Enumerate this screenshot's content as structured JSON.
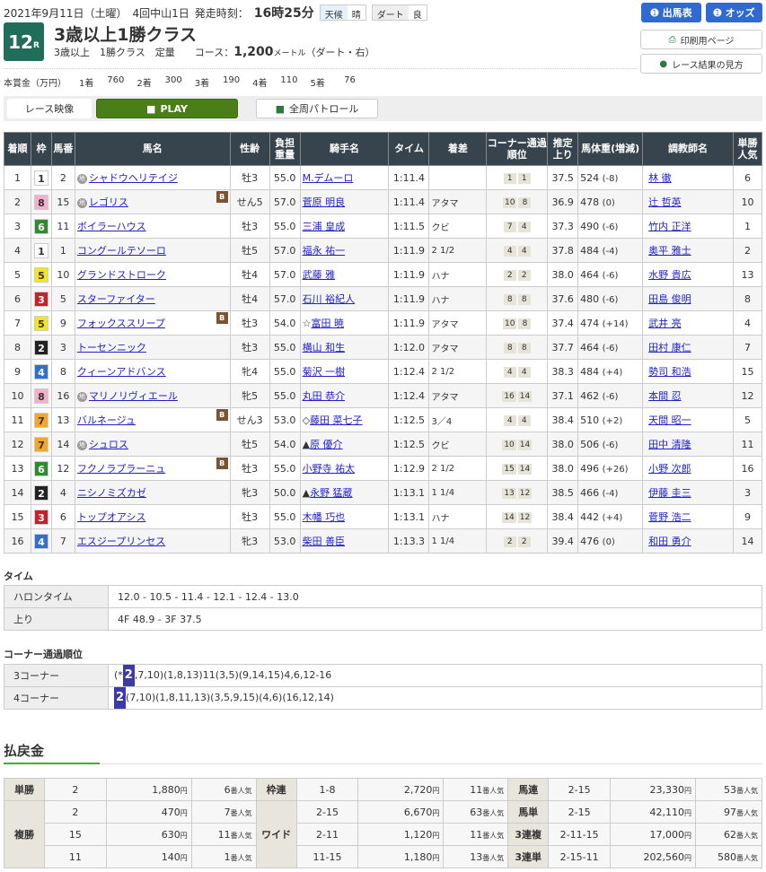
{
  "header": {
    "date": "2021年9月11日（土曜）",
    "meeting": "4回中山1日",
    "start_label": "発走時刻：",
    "start_time": "16時25分",
    "weather_label": "天候",
    "weather": "晴",
    "track_label": "ダート",
    "track_cond": "良",
    "race_no": "12",
    "race_no_suffix": "R",
    "title": "3歳以上1勝クラス",
    "conditions": "3歳以上　1勝クラス　定量",
    "course_label": "コース：",
    "distance": "1,200",
    "unit": "メートル",
    "course_detail": "（ダート・右）"
  },
  "prize": {
    "label": "本賞金（万円）",
    "items": [
      {
        "p": "1着",
        "v": "760"
      },
      {
        "p": "2着",
        "v": "300"
      },
      {
        "p": "3着",
        "v": "190"
      },
      {
        "p": "4着",
        "v": "110"
      },
      {
        "p": "5着",
        "v": "76"
      }
    ]
  },
  "buttons": {
    "entries": "出馬表",
    "odds": "オッズ",
    "print": "印刷用ページ",
    "guide": "レース結果の見方",
    "video_label": "レース映像",
    "play": "PLAY",
    "patrol": "全周パトロール"
  },
  "columns": [
    "着順",
    "枠",
    "馬番",
    "馬名",
    "性齢",
    "負担重量",
    "騎手名",
    "タイム",
    "着差",
    "コーナー通過順位",
    "推定上り",
    "馬体重(増減)",
    "調教師名",
    "単勝人気"
  ],
  "frame_colors": {
    "1": "#ffffff",
    "2": "#222222",
    "3": "#c8202a",
    "4": "#2f6fd0",
    "5": "#f5e51e",
    "6": "#2e8b2e",
    "7": "#f4a62a",
    "8": "#f2b0cb"
  },
  "horse_mark": "地",
  "blinker_mark": "B",
  "results": [
    {
      "pos": "1",
      "frame": "1",
      "no": "2",
      "mark": true,
      "name": "シャドウヘリテイジ",
      "blinker": false,
      "sex_age": "牡3",
      "weight": "55.0",
      "jockey_prefix": "",
      "jockey": "M.デムーロ",
      "time": "1:11.4",
      "margin": "",
      "c3": "1",
      "c4": "1",
      "last3f": "37.5",
      "body": "524",
      "diff": "(-8)",
      "trainer": "林 徹",
      "pop": "6"
    },
    {
      "pos": "2",
      "frame": "8",
      "no": "15",
      "mark": true,
      "name": "レゴリス",
      "blinker": true,
      "sex_age": "せん5",
      "weight": "57.0",
      "jockey_prefix": "",
      "jockey": "菅原 明良",
      "time": "1:11.4",
      "margin": "アタマ",
      "c3": "10",
      "c4": "8",
      "last3f": "36.9",
      "body": "478",
      "diff": "(0)",
      "trainer": "辻 哲英",
      "pop": "10"
    },
    {
      "pos": "3",
      "frame": "6",
      "no": "11",
      "mark": false,
      "name": "ボイラーハウス",
      "blinker": false,
      "sex_age": "牡3",
      "weight": "55.0",
      "jockey_prefix": "",
      "jockey": "三浦 皇成",
      "time": "1:11.5",
      "margin": "クビ",
      "c3": "7",
      "c4": "4",
      "last3f": "37.3",
      "body": "490",
      "diff": "(-6)",
      "trainer": "竹内 正洋",
      "pop": "1"
    },
    {
      "pos": "4",
      "frame": "1",
      "no": "1",
      "mark": false,
      "name": "コングールテソーロ",
      "blinker": false,
      "sex_age": "牡5",
      "weight": "57.0",
      "jockey_prefix": "",
      "jockey": "福永 祐一",
      "time": "1:11.9",
      "margin": "2 1/2",
      "c3": "4",
      "c4": "4",
      "last3f": "37.8",
      "body": "484",
      "diff": "(-4)",
      "trainer": "奥平 雅士",
      "pop": "2"
    },
    {
      "pos": "5",
      "frame": "5",
      "no": "10",
      "mark": false,
      "name": "グランドストローク",
      "blinker": false,
      "sex_age": "牡4",
      "weight": "57.0",
      "jockey_prefix": "",
      "jockey": "武藤 雅",
      "time": "1:11.9",
      "margin": "ハナ",
      "c3": "2",
      "c4": "2",
      "last3f": "38.0",
      "body": "464",
      "diff": "(-6)",
      "trainer": "水野 貴広",
      "pop": "13"
    },
    {
      "pos": "6",
      "frame": "3",
      "no": "5",
      "mark": false,
      "name": "スターファイター",
      "blinker": false,
      "sex_age": "牡4",
      "weight": "57.0",
      "jockey_prefix": "",
      "jockey": "石川 裕紀人",
      "time": "1:11.9",
      "margin": "ハナ",
      "c3": "8",
      "c4": "8",
      "last3f": "37.6",
      "body": "480",
      "diff": "(-6)",
      "trainer": "田島 俊明",
      "pop": "8"
    },
    {
      "pos": "7",
      "frame": "5",
      "no": "9",
      "mark": false,
      "name": "フォックススリープ",
      "blinker": true,
      "sex_age": "牡3",
      "weight": "54.0",
      "jockey_prefix": "☆",
      "jockey": "富田 暁",
      "time": "1:11.9",
      "margin": "アタマ",
      "c3": "10",
      "c4": "8",
      "last3f": "37.4",
      "body": "474",
      "diff": "(+14)",
      "trainer": "武井 亮",
      "pop": "4"
    },
    {
      "pos": "8",
      "frame": "2",
      "no": "3",
      "mark": false,
      "name": "トーセンニック",
      "blinker": false,
      "sex_age": "牡3",
      "weight": "55.0",
      "jockey_prefix": "",
      "jockey": "横山 和生",
      "time": "1:12.0",
      "margin": "アタマ",
      "c3": "8",
      "c4": "8",
      "last3f": "37.7",
      "body": "464",
      "diff": "(-6)",
      "trainer": "田村 康仁",
      "pop": "7"
    },
    {
      "pos": "9",
      "frame": "4",
      "no": "8",
      "mark": false,
      "name": "クィーンアドバンス",
      "blinker": false,
      "sex_age": "牝4",
      "weight": "55.0",
      "jockey_prefix": "",
      "jockey": "菊沢 一樹",
      "time": "1:12.4",
      "margin": "2 1/2",
      "c3": "4",
      "c4": "4",
      "last3f": "38.3",
      "body": "484",
      "diff": "(+4)",
      "trainer": "勢司 和浩",
      "pop": "15"
    },
    {
      "pos": "10",
      "frame": "8",
      "no": "16",
      "mark": true,
      "name": "マリノリヴィエール",
      "blinker": false,
      "sex_age": "牝5",
      "weight": "55.0",
      "jockey_prefix": "",
      "jockey": "丸田 恭介",
      "time": "1:12.4",
      "margin": "アタマ",
      "c3": "16",
      "c4": "14",
      "last3f": "37.1",
      "body": "462",
      "diff": "(-6)",
      "trainer": "本間 忍",
      "pop": "12"
    },
    {
      "pos": "11",
      "frame": "7",
      "no": "13",
      "mark": false,
      "name": "バルネージュ",
      "blinker": true,
      "sex_age": "せん3",
      "weight": "53.0",
      "jockey_prefix": "◇",
      "jockey": "藤田 菜七子",
      "time": "1:12.5",
      "margin": "3／4",
      "c3": "4",
      "c4": "4",
      "last3f": "38.4",
      "body": "510",
      "diff": "(+2)",
      "trainer": "天間 昭一",
      "pop": "5"
    },
    {
      "pos": "12",
      "frame": "7",
      "no": "14",
      "mark": true,
      "name": "シュロス",
      "blinker": false,
      "sex_age": "牡5",
      "weight": "54.0",
      "jockey_prefix": "▲",
      "jockey": "原 優介",
      "time": "1:12.5",
      "margin": "クビ",
      "c3": "10",
      "c4": "14",
      "last3f": "38.0",
      "body": "506",
      "diff": "(-6)",
      "trainer": "田中 清隆",
      "pop": "11"
    },
    {
      "pos": "13",
      "frame": "6",
      "no": "12",
      "mark": false,
      "name": "フクノラプラーニュ",
      "blinker": true,
      "sex_age": "牡3",
      "weight": "55.0",
      "jockey_prefix": "",
      "jockey": "小野寺 祐太",
      "time": "1:12.9",
      "margin": "2 1/2",
      "c3": "15",
      "c4": "14",
      "last3f": "38.0",
      "body": "496",
      "diff": "(+26)",
      "trainer": "小野 次郎",
      "pop": "16"
    },
    {
      "pos": "14",
      "frame": "2",
      "no": "4",
      "mark": false,
      "name": "ニシノミズカゼ",
      "blinker": false,
      "sex_age": "牝3",
      "weight": "50.0",
      "jockey_prefix": "▲",
      "jockey": "永野 猛蔵",
      "time": "1:13.1",
      "margin": "1 1/4",
      "c3": "13",
      "c4": "12",
      "last3f": "38.5",
      "body": "466",
      "diff": "(-4)",
      "trainer": "伊藤 圭三",
      "pop": "3"
    },
    {
      "pos": "15",
      "frame": "3",
      "no": "6",
      "mark": false,
      "name": "トップオアシス",
      "blinker": false,
      "sex_age": "牡3",
      "weight": "55.0",
      "jockey_prefix": "",
      "jockey": "木幡 巧也",
      "time": "1:13.1",
      "margin": "ハナ",
      "c3": "14",
      "c4": "12",
      "last3f": "38.4",
      "body": "442",
      "diff": "(+4)",
      "trainer": "菅野 浩二",
      "pop": "9"
    },
    {
      "pos": "16",
      "frame": "4",
      "no": "7",
      "mark": false,
      "name": "エスジープリンセス",
      "blinker": false,
      "sex_age": "牝3",
      "weight": "53.0",
      "jockey_prefix": "",
      "jockey": "柴田 善臣",
      "time": "1:13.3",
      "margin": "1 1/4",
      "c3": "2",
      "c4": "2",
      "last3f": "39.4",
      "body": "476",
      "diff": "(0)",
      "trainer": "和田 勇介",
      "pop": "14"
    }
  ],
  "time_section": {
    "title": "タイム",
    "furlong_label": "ハロンタイム",
    "furlong": "12.0 - 10.5 - 11.4 - 12.1 - 12.4 - 13.0",
    "last_label": "上り",
    "last": "4F 48.9 - 3F 37.5"
  },
  "corner_section": {
    "title": "コーナー通過順位",
    "c3_label": "3コーナー",
    "c3_pre": "(*",
    "c3_leader": "2",
    "c3_rest": ",7,10)(1,8,13)11(3,5)(9,14,15)4,6,12-16",
    "c4_label": "4コーナー",
    "c4_leader": "2",
    "c4_rest": "(7,10)(1,8,11,13)(3,5,9,15)(4,6)(16,12,14)"
  },
  "payout": {
    "title": "払戻金",
    "yen": "円",
    "pop_suffix": "番人気",
    "win": {
      "label": "単勝",
      "rows": [
        {
          "n": "2",
          "y": "1,880",
          "p": "6"
        }
      ]
    },
    "place": {
      "label": "複勝",
      "rows": [
        {
          "n": "2",
          "y": "470",
          "p": "7"
        },
        {
          "n": "15",
          "y": "630",
          "p": "11"
        },
        {
          "n": "11",
          "y": "140",
          "p": "1"
        }
      ]
    },
    "bracket": {
      "label": "枠連",
      "rows": [
        {
          "n": "1-8",
          "y": "2,720",
          "p": "11"
        }
      ]
    },
    "wide": {
      "label": "ワイド",
      "rows": [
        {
          "n": "2-15",
          "y": "6,670",
          "p": "63"
        },
        {
          "n": "2-11",
          "y": "1,120",
          "p": "11"
        },
        {
          "n": "11-15",
          "y": "1,180",
          "p": "13"
        }
      ]
    },
    "quinella": {
      "label": "馬連",
      "rows": [
        {
          "n": "2-15",
          "y": "23,330",
          "p": "53"
        }
      ]
    },
    "exacta": {
      "label": "馬単",
      "rows": [
        {
          "n": "2-15",
          "y": "42,110",
          "p": "97"
        }
      ]
    },
    "trio": {
      "label": "3連複",
      "rows": [
        {
          "n": "2-11-15",
          "y": "17,000",
          "p": "62"
        }
      ]
    },
    "trifecta": {
      "label": "3連単",
      "rows": [
        {
          "n": "2-15-11",
          "y": "202,560",
          "p": "580"
        }
      ]
    }
  }
}
